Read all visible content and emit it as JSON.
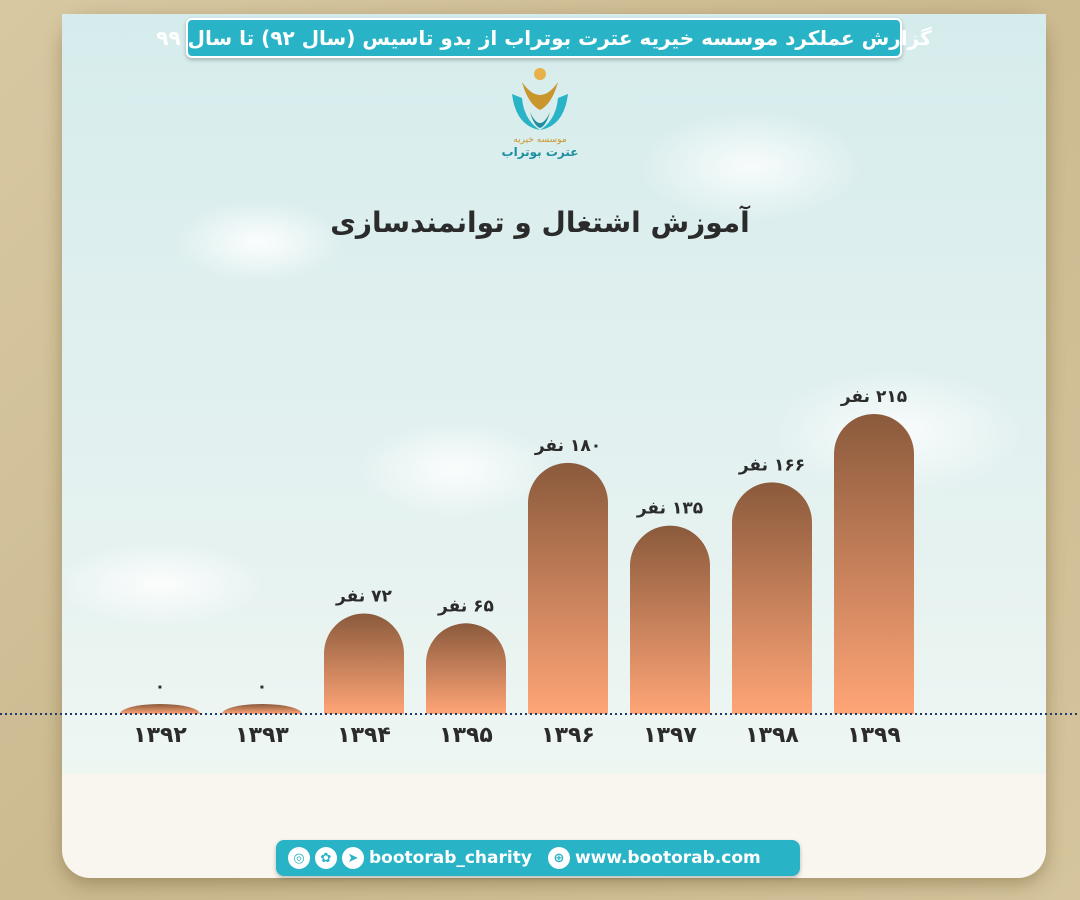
{
  "header": {
    "title": "گزارش عملکرد موسسه خیریه عترت بوتراب از بدو تاسیس (سال ۹۲) تا سال ۹۹"
  },
  "logo": {
    "line1": "موسسه خیریه",
    "line2": "عترت بوتراب"
  },
  "colors": {
    "accent": "#29b3c6",
    "bar_top": "#8a5a3c",
    "bar_bottom": "#ffa577",
    "axis": "#1f3b6e"
  },
  "chart_data": {
    "type": "bar",
    "title": "آموزش اشتغال و توانمندسازی",
    "categories": [
      "۱۳۹۲",
      "۱۳۹۳",
      "۱۳۹۴",
      "۱۳۹۵",
      "۱۳۹۶",
      "۱۳۹۷",
      "۱۳۹۸",
      "۱۳۹۹"
    ],
    "values": [
      0,
      0,
      72,
      65,
      180,
      135,
      166,
      215
    ],
    "value_labels": [
      "۰",
      "۰",
      "۷۲ نفر",
      "۶۵ نفر",
      "۱۸۰ نفر",
      "۱۳۵ نفر",
      "۱۶۶ نفر",
      "۲۱۵ نفر"
    ],
    "ylim": [
      0,
      215
    ],
    "grid": false,
    "legend": "none"
  },
  "footer": {
    "icons": [
      "instagram-icon",
      "aparat-icon",
      "telegram-icon"
    ],
    "social_handle": "bootorab_charity",
    "website": "www.bootorab.com",
    "globe_icon": "globe-icon"
  }
}
